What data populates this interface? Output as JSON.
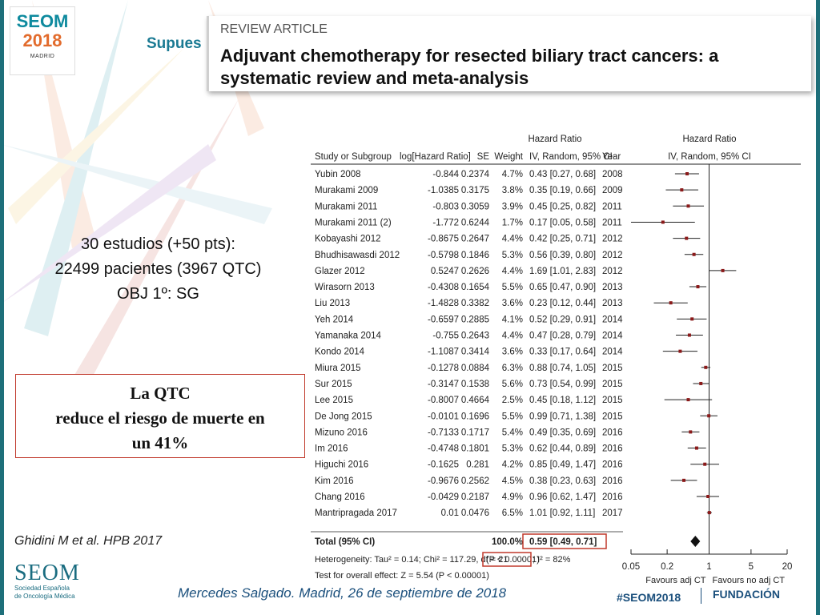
{
  "header": {
    "logo": {
      "line1": "SEOM",
      "line2": "2018",
      "line3": "MADRID"
    },
    "slide_title": "Supues"
  },
  "article": {
    "label": "REVIEW ARTICLE",
    "title": "Adjuvant chemotherapy for resected biliary tract cancers: a systematic review and meta-analysis"
  },
  "left": {
    "study_lines": [
      "30 estudios (+50 pts):",
      "22499 pacientes (3967 QTC)",
      "OBJ 1º:  SG"
    ],
    "result_lines": [
      "La QTC",
      "reduce el riesgo de muerte en",
      "un 41%"
    ],
    "reference_authors": "Ghidini M et al.",
    "reference_journal": "HPB  2017"
  },
  "forest": {
    "header_hr": "Hazard Ratio",
    "header_hr2": "Hazard Ratio",
    "col_study": "Study or Subgroup",
    "col_log": "log[Hazard Ratio]",
    "col_se": "SE",
    "col_weight": "Weight",
    "col_ci": "IV, Random, 95% CI",
    "col_year": "Year",
    "col_plot": "IV, Random, 95% CI",
    "total_label": "Total (95% CI)",
    "total_weight": "100.0%",
    "total_ci": "0.59 [0.49, 0.71]",
    "heterogeneity_a": "Heterogeneity: Tau² = 0.14; Chi² = 117.29, df = 21",
    "heterogeneity_p": "(P < 0.00001)",
    "heterogeneity_b": "; I² = 82%",
    "overall_effect": "Test for overall effect: Z = 5.54 (P < 0.00001)",
    "axis_ticks": [
      "0.05",
      "0.2",
      "1",
      "5",
      "20"
    ],
    "favours_left": "Favours adj CT",
    "favours_right": "Favours no adj CT",
    "accent_red": "#c0392b",
    "marker_color": "#8b1a1a"
  },
  "chart_data": {
    "type": "forest",
    "xscale": "log",
    "xlim": [
      0.05,
      20
    ],
    "studies": [
      {
        "name": "Yubin 2008",
        "log_hr": "-0.844",
        "se": "0.2374",
        "weight": "4.7%",
        "ci": "0.43 [0.27, 0.68]",
        "year": "2008",
        "hr": 0.43,
        "lo": 0.27,
        "hi": 0.68
      },
      {
        "name": "Murakami 2009",
        "log_hr": "-1.0385",
        "se": "0.3175",
        "weight": "3.8%",
        "ci": "0.35 [0.19, 0.66]",
        "year": "2009",
        "hr": 0.35,
        "lo": 0.19,
        "hi": 0.66
      },
      {
        "name": "Murakami 2011",
        "log_hr": "-0.803",
        "se": "0.3059",
        "weight": "3.9%",
        "ci": "0.45 [0.25, 0.82]",
        "year": "2011",
        "hr": 0.45,
        "lo": 0.25,
        "hi": 0.82
      },
      {
        "name": "Murakami 2011 (2)",
        "log_hr": "-1.772",
        "se": "0.6244",
        "weight": "1.7%",
        "ci": "0.17 [0.05, 0.58]",
        "year": "2011",
        "hr": 0.17,
        "lo": 0.05,
        "hi": 0.58
      },
      {
        "name": "Kobayashi 2012",
        "log_hr": "-0.8675",
        "se": "0.2647",
        "weight": "4.4%",
        "ci": "0.42 [0.25, 0.71]",
        "year": "2012",
        "hr": 0.42,
        "lo": 0.25,
        "hi": 0.71
      },
      {
        "name": "Bhudhisawasdi 2012",
        "log_hr": "-0.5798",
        "se": "0.1846",
        "weight": "5.3%",
        "ci": "0.56 [0.39, 0.80]",
        "year": "2012",
        "hr": 0.56,
        "lo": 0.39,
        "hi": 0.8
      },
      {
        "name": "Glazer 2012",
        "log_hr": "0.5247",
        "se": "0.2626",
        "weight": "4.4%",
        "ci": "1.69 [1.01, 2.83]",
        "year": "2012",
        "hr": 1.69,
        "lo": 1.01,
        "hi": 2.83
      },
      {
        "name": "Wirasorn 2013",
        "log_hr": "-0.4308",
        "se": "0.1654",
        "weight": "5.5%",
        "ci": "0.65 [0.47, 0.90]",
        "year": "2013",
        "hr": 0.65,
        "lo": 0.47,
        "hi": 0.9
      },
      {
        "name": "Liu 2013",
        "log_hr": "-1.4828",
        "se": "0.3382",
        "weight": "3.6%",
        "ci": "0.23 [0.12, 0.44]",
        "year": "2013",
        "hr": 0.23,
        "lo": 0.12,
        "hi": 0.44
      },
      {
        "name": "Yeh 2014",
        "log_hr": "-0.6597",
        "se": "0.2885",
        "weight": "4.1%",
        "ci": "0.52 [0.29, 0.91]",
        "year": "2014",
        "hr": 0.52,
        "lo": 0.29,
        "hi": 0.91
      },
      {
        "name": "Yamanaka 2014",
        "log_hr": "-0.755",
        "se": "0.2643",
        "weight": "4.4%",
        "ci": "0.47 [0.28, 0.79]",
        "year": "2014",
        "hr": 0.47,
        "lo": 0.28,
        "hi": 0.79
      },
      {
        "name": "Kondo 2014",
        "log_hr": "-1.1087",
        "se": "0.3414",
        "weight": "3.6%",
        "ci": "0.33 [0.17, 0.64]",
        "year": "2014",
        "hr": 0.33,
        "lo": 0.17,
        "hi": 0.64
      },
      {
        "name": "Miura 2015",
        "log_hr": "-0.1278",
        "se": "0.0884",
        "weight": "6.3%",
        "ci": "0.88 [0.74, 1.05]",
        "year": "2015",
        "hr": 0.88,
        "lo": 0.74,
        "hi": 1.05
      },
      {
        "name": "Sur 2015",
        "log_hr": "-0.3147",
        "se": "0.1538",
        "weight": "5.6%",
        "ci": "0.73 [0.54, 0.99]",
        "year": "2015",
        "hr": 0.73,
        "lo": 0.54,
        "hi": 0.99
      },
      {
        "name": "Lee 2015",
        "log_hr": "-0.8007",
        "se": "0.4664",
        "weight": "2.5%",
        "ci": "0.45 [0.18, 1.12]",
        "year": "2015",
        "hr": 0.45,
        "lo": 0.18,
        "hi": 1.12
      },
      {
        "name": "De Jong 2015",
        "log_hr": "-0.0101",
        "se": "0.1696",
        "weight": "5.5%",
        "ci": "0.99 [0.71, 1.38]",
        "year": "2015",
        "hr": 0.99,
        "lo": 0.71,
        "hi": 1.38
      },
      {
        "name": "Mizuno 2016",
        "log_hr": "-0.7133",
        "se": "0.1717",
        "weight": "5.4%",
        "ci": "0.49 [0.35, 0.69]",
        "year": "2016",
        "hr": 0.49,
        "lo": 0.35,
        "hi": 0.69
      },
      {
        "name": "Im 2016",
        "log_hr": "-0.4748",
        "se": "0.1801",
        "weight": "5.3%",
        "ci": "0.62 [0.44, 0.89]",
        "year": "2016",
        "hr": 0.62,
        "lo": 0.44,
        "hi": 0.89
      },
      {
        "name": "Higuchi 2016",
        "log_hr": "-0.1625",
        "se": "0.281",
        "weight": "4.2%",
        "ci": "0.85 [0.49, 1.47]",
        "year": "2016",
        "hr": 0.85,
        "lo": 0.49,
        "hi": 1.47
      },
      {
        "name": "Kim 2016",
        "log_hr": "-0.9676",
        "se": "0.2562",
        "weight": "4.5%",
        "ci": "0.38 [0.23, 0.63]",
        "year": "2016",
        "hr": 0.38,
        "lo": 0.23,
        "hi": 0.63
      },
      {
        "name": "Chang 2016",
        "log_hr": "-0.0429",
        "se": "0.2187",
        "weight": "4.9%",
        "ci": "0.96 [0.62, 1.47]",
        "year": "2016",
        "hr": 0.96,
        "lo": 0.62,
        "hi": 1.47
      },
      {
        "name": "Mantripragada 2017",
        "log_hr": "0.01",
        "se": "0.0476",
        "weight": "6.5%",
        "ci": "1.01 [0.92, 1.11]",
        "year": "2017",
        "hr": 1.01,
        "lo": 0.92,
        "hi": 1.11
      }
    ],
    "total": {
      "hr": 0.59,
      "lo": 0.49,
      "hi": 0.71
    }
  },
  "footer": {
    "seom_big": "SEOM",
    "seom_small1": "Sociedad Española",
    "seom_small2": "de Oncología Médica",
    "author_line": "Mercedes Salgado. Madrid, 26 de septiembre de 2018",
    "hashtag": "#SEOM2018",
    "sponsor": "FUNDACIÓN"
  }
}
